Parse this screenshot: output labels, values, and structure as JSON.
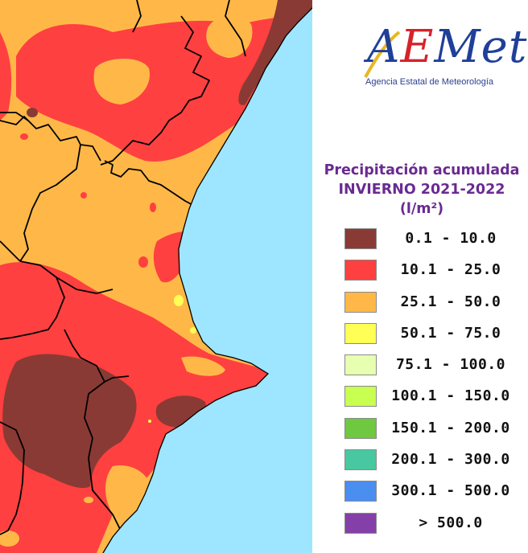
{
  "logo": {
    "wordmark_parts": [
      "A",
      "E",
      "Met"
    ],
    "agency": "Agencia Estatal de Meteorología"
  },
  "title": {
    "line1": "Precipitación acumulada",
    "line2": "INVIERNO 2021-2022",
    "unit": "(l/m²)"
  },
  "legend": [
    {
      "label": "0.1 - 10.0",
      "color": "#8a3a34"
    },
    {
      "label": "10.1 - 25.0",
      "color": "#ff4040"
    },
    {
      "label": "25.1 - 50.0",
      "color": "#ffb848"
    },
    {
      "label": "50.1 - 75.0",
      "color": "#ffff55"
    },
    {
      "label": "75.1 - 100.0",
      "color": "#e6ffb0"
    },
    {
      "label": "100.1 - 150.0",
      "color": "#c8ff50"
    },
    {
      "label": "150.1 - 200.0",
      "color": "#6ec840"
    },
    {
      "label": "200.1 - 300.0",
      "color": "#48c8a0"
    },
    {
      "label": "300.1 - 500.0",
      "color": "#4a8ef0"
    },
    {
      "label": "> 500.0",
      "color": "#8440a8"
    }
  ],
  "map_colors": {
    "sea": "#9ee6ff",
    "land_outside": "#c9c9c9",
    "class_0_1_10": "#8a3a34",
    "class_10_25": "#ff4040",
    "class_25_50": "#ffb848",
    "class_50_75": "#ffff55",
    "border": "#000000"
  }
}
